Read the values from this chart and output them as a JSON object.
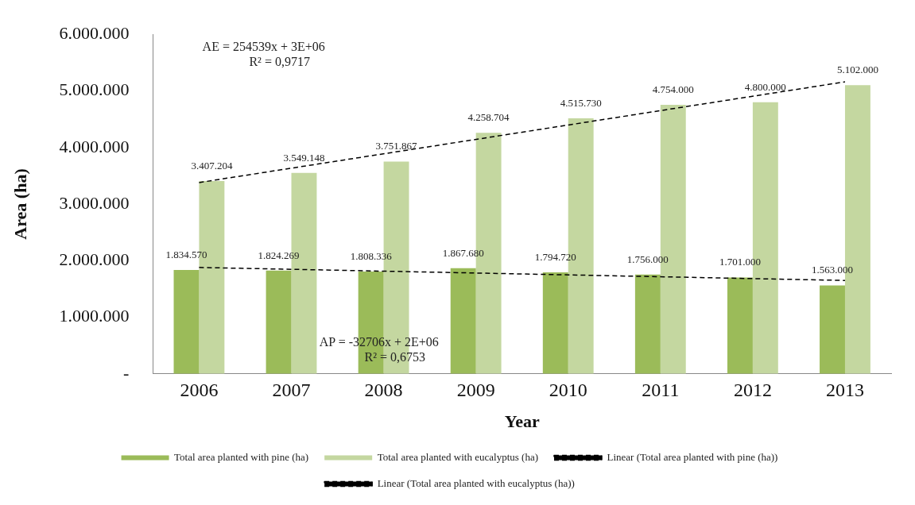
{
  "chart_data": {
    "type": "bar",
    "xlabel": "Year",
    "ylabel": "Area (ha)",
    "categories": [
      "2006",
      "2007",
      "2008",
      "2009",
      "2010",
      "2011",
      "2012",
      "2013"
    ],
    "series": [
      {
        "name": "Total area planted with pine (ha)",
        "color": "#9bbb59",
        "values": [
          1834570,
          1824269,
          1808336,
          1867680,
          1794720,
          1756000,
          1701000,
          1563000
        ],
        "value_labels": [
          "1.834.570",
          "1.824.269",
          "1.808.336",
          "1.867.680",
          "1.794.720",
          "1.756.000",
          "1.701.000",
          "1.563.000"
        ]
      },
      {
        "name": "Total area planted with eucalyptus (ha)",
        "color": "#c4d7a0",
        "values": [
          3407204,
          3549148,
          3751867,
          4258704,
          4515730,
          4754000,
          4800000,
          5102000
        ],
        "value_labels": [
          "3.407.204",
          "3.549.148",
          "3.751.867",
          "4.258.704",
          "4.515.730",
          "4.754.000",
          "4.800.000",
          "5.102.000"
        ]
      },
      {
        "name": "Linear (Total area planted with pine (ha))",
        "type": "line",
        "color": "#000000",
        "line_style": "dashed",
        "marker": "none",
        "values": [
          1880000,
          null,
          null,
          null,
          null,
          null,
          null,
          1650000
        ]
      },
      {
        "name": "Linear (Total area planted with eucalyptus (ha))",
        "type": "line",
        "color": "#000000",
        "line_style": "dashed",
        "marker": "none",
        "values": [
          3380000,
          null,
          null,
          null,
          null,
          null,
          null,
          5160000
        ]
      }
    ],
    "ylim": [
      0,
      6000000
    ],
    "yticks": [
      {
        "value": 0,
        "label": "-"
      },
      {
        "value": 1000000,
        "label": "1.000.000"
      },
      {
        "value": 2000000,
        "label": "2.000.000"
      },
      {
        "value": 3000000,
        "label": "3.000.000"
      },
      {
        "value": 4000000,
        "label": "4.000.000"
      },
      {
        "value": 5000000,
        "label": "5.000.000"
      },
      {
        "value": 6000000,
        "label": "6.000.000"
      }
    ],
    "annotations": [
      "AE = 254539x + 3E+06\nR² = 0,9717",
      "AP = -32706x + 2E+06\nR² = 0,6753"
    ],
    "grid": false,
    "legend": "bottom"
  }
}
